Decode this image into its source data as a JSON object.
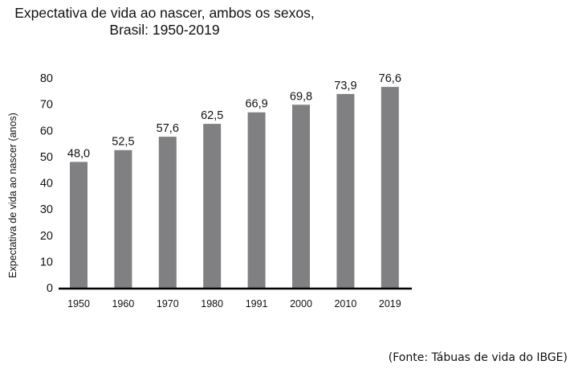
{
  "chart_data": {
    "type": "bar",
    "title_line1": "Expectativa de vida ao nascer, ambos os sexos,",
    "title_line2": "Brasil: 1950-2019",
    "xlabel": "",
    "ylabel": "Expectativa de vida ao nascer (anos)",
    "categories": [
      "1950",
      "1960",
      "1970",
      "1980",
      "1991",
      "2000",
      "2010",
      "2019"
    ],
    "values": [
      48.0,
      52.5,
      57.6,
      62.5,
      66.9,
      69.8,
      73.9,
      76.6
    ],
    "data_labels": [
      "48,0",
      "52,5",
      "57,6",
      "62,5",
      "66,9",
      "69,8",
      "73,9",
      "76,6"
    ],
    "yticks": [
      0,
      10,
      20,
      30,
      40,
      50,
      60,
      70,
      80
    ],
    "ylim": [
      0,
      80
    ],
    "grid": false,
    "bar_color": "#808083"
  },
  "source": "(Fonte: Tábuas de vida do IBGE)"
}
